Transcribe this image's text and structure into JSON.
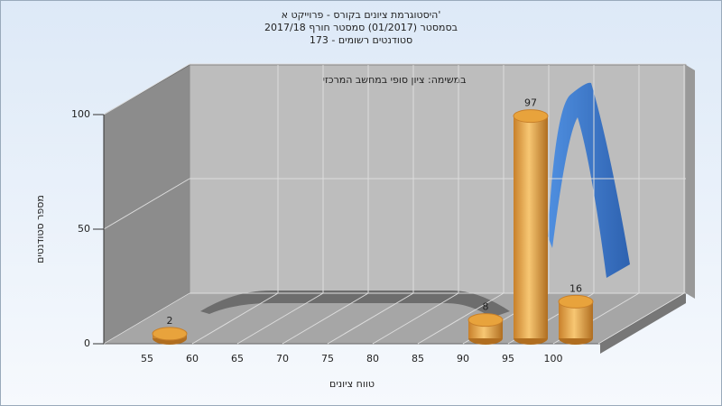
{
  "chart_data": {
    "type": "bar",
    "title": [
      "היסטוגרמת ציונים בקורס - פרוייקט א'",
      "בסמסטר  (01/2017)  סמסטר חורף 2017/18",
      "סטודנטים רשומים - 173"
    ],
    "annotation": "במשימה: ציון סופי במחשב המרכזי",
    "x_label": "טווח ציונים",
    "y_label": "מספר סטודנטים",
    "categories": [
      "55",
      "60",
      "65",
      "70",
      "75",
      "80",
      "85",
      "90",
      "95",
      "100"
    ],
    "values": [
      2,
      null,
      null,
      null,
      null,
      null,
      null,
      8,
      97,
      16
    ],
    "color": "#e8a33c",
    "ylim": [
      0,
      100
    ],
    "yticks": [
      0,
      50,
      100
    ],
    "grid": true
  }
}
